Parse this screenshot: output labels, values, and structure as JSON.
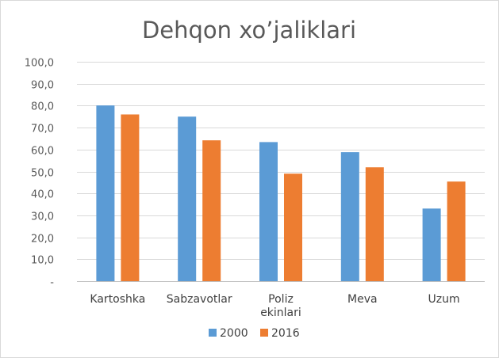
{
  "chart_data": {
    "type": "bar",
    "title": "Dehqon xo’jaliklari",
    "categories": [
      "Kartoshka",
      "Sabzavotlar",
      "Poliz ekinlari",
      "Meva",
      "Uzum"
    ],
    "category_lines": [
      [
        "Kartoshka"
      ],
      [
        "Sabzavotlar"
      ],
      [
        "Poliz",
        "ekinlari"
      ],
      [
        "Meva"
      ],
      [
        "Uzum"
      ]
    ],
    "series": [
      {
        "name": "2000",
        "color": "#5b9bd5",
        "values": [
          80.1,
          75.0,
          63.4,
          58.8,
          33.1
        ]
      },
      {
        "name": "2016",
        "color": "#ed7d31",
        "values": [
          76.0,
          64.2,
          49.0,
          51.9,
          45.4
        ]
      }
    ],
    "ylim": [
      0,
      100
    ],
    "yticks": [
      0,
      10,
      20,
      30,
      40,
      50,
      60,
      70,
      80,
      90,
      100
    ],
    "ytick_labels": [
      "-",
      "10,0",
      "20,0",
      "30,0",
      "40,0",
      "50,0",
      "60,0",
      "70,0",
      "80,0",
      "90,0",
      "100,0"
    ],
    "grid": true,
    "legend_position": "bottom",
    "xlabel": "",
    "ylabel": ""
  }
}
